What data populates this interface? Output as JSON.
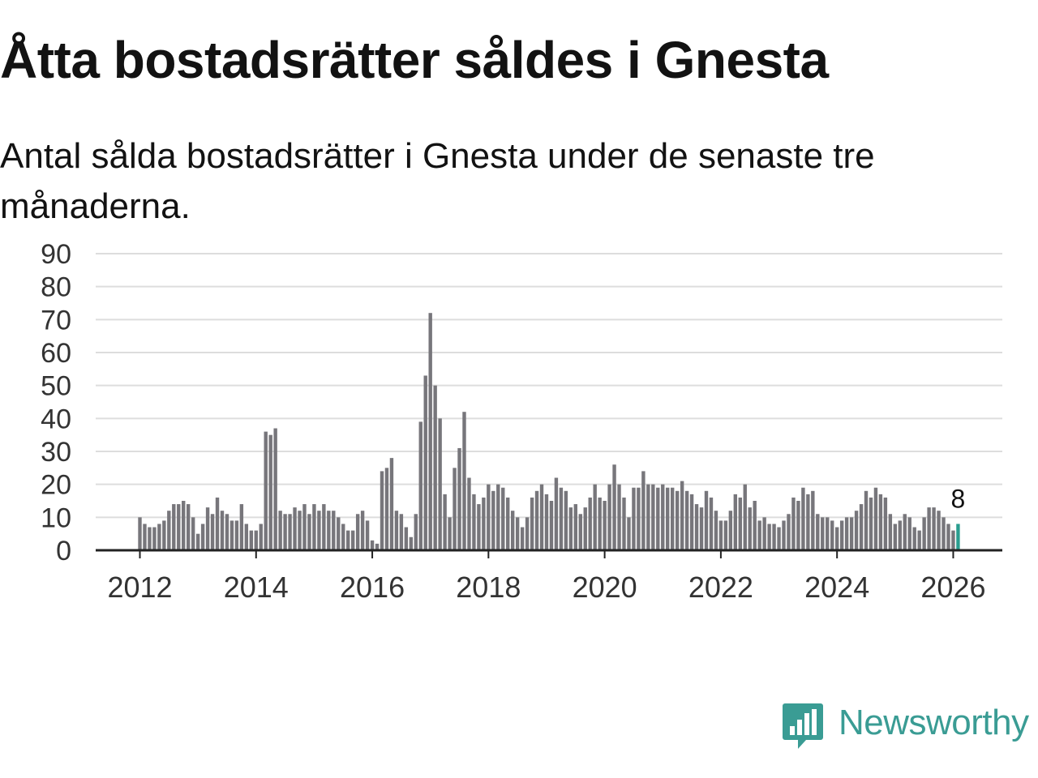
{
  "title": "Åtta bostadsrätter såldes i Gnesta",
  "subtitle": "Antal sålda bostadsrätter i Gnesta under de senaste tre månaderna.",
  "brand": {
    "name": "Newsworthy",
    "color": "#3a9c94"
  },
  "colors": {
    "bar": "#77767b",
    "highlight": "#2a9d8f",
    "grid": "#dddddd",
    "axis": "#222222",
    "tick_label": "#333333"
  },
  "chart_data": {
    "type": "bar",
    "title": "Åtta bostadsrätter såldes i Gnesta",
    "xlabel": "",
    "ylabel": "",
    "ylim": [
      0,
      90
    ],
    "y_ticks": [
      "0",
      "10",
      "20",
      "30",
      "40",
      "50",
      "60",
      "70",
      "80",
      "90"
    ],
    "x_ticks": [
      "2012",
      "2014",
      "2016",
      "2018",
      "2020",
      "2022",
      "2024",
      "2026"
    ],
    "start": "2012-01",
    "interval": "month",
    "values": [
      10,
      8,
      7,
      7,
      8,
      9,
      12,
      14,
      14,
      15,
      14,
      10,
      5,
      8,
      13,
      11,
      16,
      12,
      11,
      9,
      9,
      14,
      8,
      6,
      6,
      8,
      36,
      35,
      37,
      12,
      11,
      11,
      13,
      12,
      14,
      11,
      14,
      12,
      14,
      12,
      12,
      10,
      8,
      6,
      6,
      11,
      12,
      9,
      3,
      2,
      24,
      25,
      28,
      12,
      11,
      7,
      4,
      11,
      39,
      53,
      72,
      50,
      40,
      17,
      10,
      25,
      31,
      42,
      22,
      17,
      14,
      16,
      20,
      18,
      20,
      19,
      16,
      12,
      10,
      7,
      10,
      16,
      18,
      20,
      17,
      15,
      22,
      19,
      18,
      13,
      14,
      11,
      13,
      16,
      20,
      16,
      15,
      20,
      26,
      20,
      16,
      10,
      19,
      19,
      24,
      20,
      20,
      19,
      20,
      19,
      19,
      18,
      21,
      18,
      17,
      14,
      13,
      18,
      16,
      12,
      9,
      9,
      12,
      17,
      16,
      20,
      13,
      15,
      9,
      10,
      8,
      8,
      7,
      9,
      11,
      16,
      15,
      19,
      17,
      18,
      11,
      10,
      10,
      9,
      7,
      9,
      10,
      10,
      12,
      14,
      18,
      16,
      19,
      17,
      16,
      11,
      8,
      9,
      11,
      10,
      7,
      6,
      10,
      13,
      13,
      12,
      10,
      8,
      6,
      8
    ],
    "highlight_index": 169,
    "highlight_label": "8"
  }
}
